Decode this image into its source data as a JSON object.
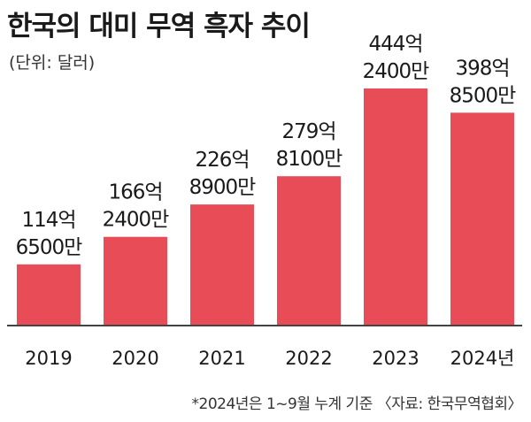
{
  "title": "한국의 대미 무역 흑자 추이",
  "unit": "(단위: 달러)",
  "footnote": "*2024년은 1~9월 누계 기준 〈자료: 한국무역협회〉",
  "colors": {
    "bar": "#e84c56",
    "baseline": "#444444"
  },
  "chart_data": {
    "type": "bar",
    "categories": [
      "2019",
      "2020",
      "2021",
      "2022",
      "2023",
      "2024년"
    ],
    "values": [
      114.65,
      166.24,
      226.89,
      279.81,
      444.24,
      398.85
    ],
    "value_labels": [
      [
        "114억",
        "6500만"
      ],
      [
        "166억",
        "2400만"
      ],
      [
        "226억",
        "8900만"
      ],
      [
        "279억",
        "8100만"
      ],
      [
        "444억",
        "2400만"
      ],
      [
        "398억",
        "8500만"
      ]
    ],
    "title": "한국의 대미 무역 흑자 추이",
    "xlabel": "",
    "ylabel": "",
    "ylim": [
      0,
      444.24
    ],
    "grid": false,
    "legend": "none"
  }
}
